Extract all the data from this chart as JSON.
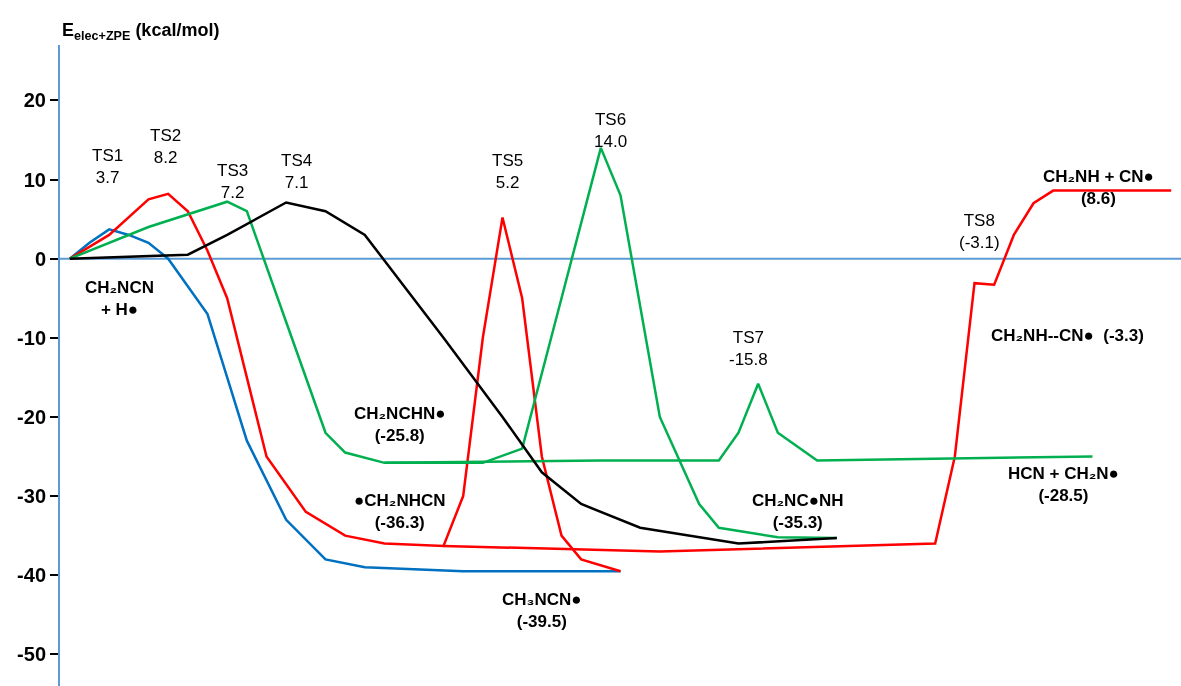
{
  "chart_data": {
    "type": "line",
    "ylabel": "E$_{elec+ZPE}$ (kcal/mol)",
    "categories": [
      null,
      null,
      null,
      null,
      null,
      null,
      null,
      null,
      null,
      null,
      null,
      null,
      null,
      null,
      null,
      null,
      null,
      null,
      null,
      null,
      null,
      null,
      null,
      null,
      null,
      null,
      null,
      null,
      null,
      null,
      null,
      null,
      null,
      null,
      null,
      null,
      null,
      null,
      null,
      null,
      null,
      null,
      null,
      null,
      null,
      null,
      null,
      null,
      null,
      null,
      null,
      null,
      null,
      null,
      null,
      null,
      null
    ],
    "ylim": [
      -54,
      27
    ],
    "yticks": [
      -50,
      -40,
      -30,
      -20,
      -10,
      0,
      10,
      20
    ],
    "tick_labels": "y",
    "marker": "none",
    "line_style": "solid",
    "ref_lines": [
      {
        "axis": "y",
        "value": 0,
        "color": "#5b9bd5"
      }
    ],
    "series": [
      {
        "color": "#0070c0",
        "values": [
          0,
          2,
          3.7,
          3,
          2,
          0,
          null,
          -7,
          -15,
          -23,
          null,
          -33,
          null,
          -38,
          null,
          -39,
          null,
          null,
          null,
          null,
          -39.5,
          null,
          null,
          null,
          null,
          null,
          null,
          null,
          -39.5,
          null,
          null,
          null,
          null,
          null,
          null,
          null,
          null,
          null,
          null,
          null,
          null,
          null,
          null,
          null,
          null,
          null,
          null,
          null,
          null,
          null,
          null,
          null,
          null,
          null,
          null,
          null,
          null
        ]
      },
      {
        "color": "#ff0000",
        "values": [
          0,
          null,
          3,
          null,
          7.5,
          8.2,
          6,
          1,
          -5,
          -15,
          -25,
          null,
          -32,
          null,
          -35,
          null,
          -36,
          null,
          null,
          -36.3,
          -30,
          -10,
          5.2,
          -5,
          -25,
          -35,
          -38,
          null,
          -39.5,
          null,
          null,
          null,
          null,
          null,
          null,
          null,
          null,
          null,
          null,
          null,
          null,
          null,
          null,
          null,
          null,
          null,
          null,
          null,
          null,
          null,
          null,
          null,
          null,
          null,
          null,
          null,
          null
        ]
      },
      {
        "color": "#ff0000",
        "values": [
          null,
          null,
          null,
          null,
          null,
          null,
          null,
          null,
          null,
          null,
          null,
          null,
          null,
          null,
          null,
          null,
          null,
          null,
          null,
          -36.3,
          null,
          null,
          null,
          null,
          null,
          null,
          null,
          null,
          null,
          null,
          -37,
          null,
          null,
          null,
          null,
          null,
          null,
          null,
          null,
          null,
          null,
          null,
          null,
          null,
          -36,
          -25,
          -3.1,
          -3.3,
          3,
          7,
          8.6,
          null,
          null,
          null,
          null,
          null,
          8.6
        ]
      },
      {
        "color": "#00b050",
        "values": [
          0,
          null,
          null,
          null,
          4,
          null,
          null,
          null,
          7.2,
          6,
          null,
          -8,
          null,
          -22,
          -24.5,
          null,
          -25.8,
          null,
          null,
          null,
          null,
          -25.8,
          null,
          -24,
          null,
          -5,
          null,
          14.0,
          8,
          null,
          -20,
          null,
          -31,
          -34,
          null,
          null,
          -35.2,
          null,
          null,
          -35.3,
          null,
          null,
          null,
          null,
          null,
          null,
          null,
          null,
          null,
          null,
          null,
          null,
          null,
          null,
          null,
          null,
          null
        ]
      },
      {
        "color": "#00b050",
        "values": [
          null,
          null,
          null,
          null,
          null,
          null,
          null,
          null,
          null,
          null,
          null,
          null,
          null,
          null,
          null,
          null,
          -25.8,
          null,
          null,
          null,
          null,
          null,
          null,
          null,
          null,
          null,
          null,
          -25.5,
          null,
          null,
          null,
          null,
          null,
          -25.5,
          -22,
          -15.8,
          -22,
          null,
          -25.5,
          null,
          null,
          null,
          null,
          null,
          null,
          null,
          null,
          null,
          null,
          null,
          null,
          null,
          -25,
          null,
          null,
          null,
          null
        ]
      },
      {
        "color": "#000000",
        "values": [
          0,
          null,
          null,
          null,
          null,
          null,
          0.5,
          null,
          3,
          null,
          null,
          7.1,
          null,
          6,
          null,
          3,
          null,
          null,
          null,
          -10,
          null,
          null,
          -20,
          null,
          -27,
          null,
          -31,
          null,
          null,
          -34,
          null,
          null,
          null,
          null,
          -36,
          null,
          null,
          null,
          null,
          -35.3,
          null,
          null,
          null,
          null,
          null,
          null,
          null,
          null,
          null,
          null,
          null,
          null,
          null,
          null,
          null,
          null,
          null
        ]
      }
    ],
    "annotations": [
      "TS1\n3.7",
      "TS2\n8.2",
      "TS3\n7.2",
      "TS4\n7.1",
      "TS5\n5.2",
      "TS6\n14.0",
      "TS7\n-15.8",
      "TS8\n(-3.1)",
      "CH₂NCN\n+ H●",
      "CH₂NCHN●\n(-25.8)",
      "●CH₂NHCN\n(-36.3)",
      "CH₃NCN●\n(-39.5)",
      "CH₂NC●NH\n(-35.3)",
      "HCN + CH₂N●\n(-28.5)",
      "CH₂NH--CN●  (-3.3)",
      "CH₂NH + CN●\n(8.6)"
    ]
  }
}
